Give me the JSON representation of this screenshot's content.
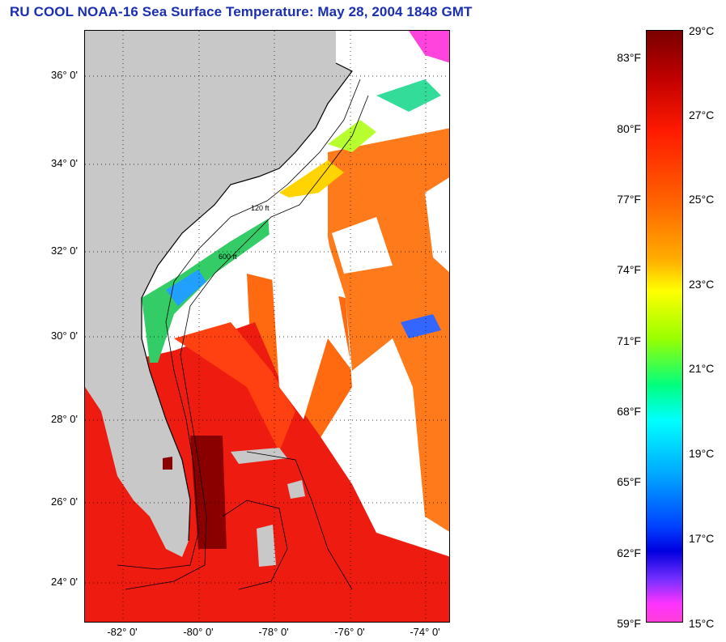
{
  "title": "RU COOL  NOAA-16  Sea Surface Temperature:  May 28, 2004 1848 GMT",
  "map": {
    "lat_labels": [
      "36° 0'",
      "34° 0'",
      "32° 0'",
      "30° 0'",
      "28° 0'",
      "26° 0'",
      "24° 0'"
    ],
    "lon_labels": [
      "-82° 0'",
      "-80° 0'",
      "-78° 0'",
      "-76° 0'",
      "-74° 0'"
    ],
    "contour_labels": [
      "120 ft",
      "600 ft"
    ],
    "land_color": "#c8c8c8",
    "no_data_color": "#ffffff"
  },
  "colorbar": {
    "fahrenheit_labels": [
      "83°F",
      "80°F",
      "77°F",
      "74°F",
      "71°F",
      "68°F",
      "65°F",
      "62°F",
      "59°F"
    ],
    "celsius_labels": [
      "29°C",
      "27°C",
      "25°C",
      "23°C",
      "21°C",
      "19°C",
      "17°C",
      "15°C"
    ],
    "max_celsius": 29,
    "min_celsius": 15
  }
}
